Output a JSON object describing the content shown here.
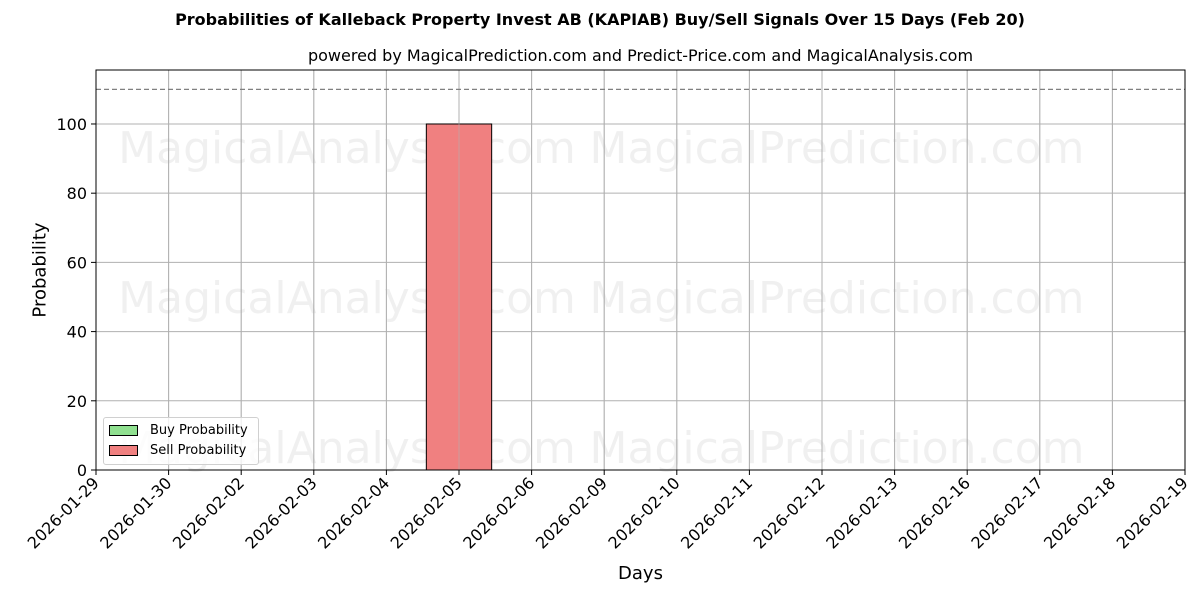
{
  "header": {
    "title": "Probabilities of Kalleback Property Invest AB (KAPIAB) Buy/Sell Signals Over 15 Days (Feb 20)",
    "subtitle": "powered by MagicalPrediction.com and Predict-Price.com and MagicalAnalysis.com"
  },
  "watermarks": [
    "MagicalAnalysis.com",
    "MagicalPrediction.com"
  ],
  "legend": {
    "buy_label": "Buy Probability",
    "sell_label": "Sell Probability"
  },
  "colors": {
    "buy": "#90e090",
    "sell": "#f08080",
    "threshold": "#808080",
    "grid": "#b0b0b0"
  },
  "chart_data": {
    "type": "bar",
    "title": "Probabilities of Kalleback Property Invest AB (KAPIAB) Buy/Sell Signals Over 15 Days (Feb 20)",
    "subtitle": "powered by MagicalPrediction.com and Predict-Price.com and MagicalAnalysis.com",
    "xlabel": "Days",
    "ylabel": "Probability",
    "categories": [
      "2026-01-29",
      "2026-01-30",
      "2026-02-02",
      "2026-02-03",
      "2026-02-04",
      "2026-02-05",
      "2026-02-06",
      "2026-02-09",
      "2026-02-10",
      "2026-02-11",
      "2026-02-12",
      "2026-02-13",
      "2026-02-16",
      "2026-02-17",
      "2026-02-18",
      "2026-02-19"
    ],
    "series": [
      {
        "name": "Buy Probability",
        "values": [
          0,
          0,
          0,
          0,
          0,
          0,
          0,
          0,
          0,
          0,
          0,
          0,
          0,
          0,
          0,
          0
        ]
      },
      {
        "name": "Sell Probability",
        "values": [
          0,
          0,
          0,
          0,
          0,
          100,
          0,
          0,
          0,
          0,
          0,
          0,
          0,
          0,
          0,
          0
        ]
      }
    ],
    "yticks": [
      0,
      20,
      40,
      60,
      80,
      100
    ],
    "ylim": [
      0,
      115.6
    ],
    "threshold_line": 110,
    "grid": true,
    "legend_position": "lower left"
  }
}
